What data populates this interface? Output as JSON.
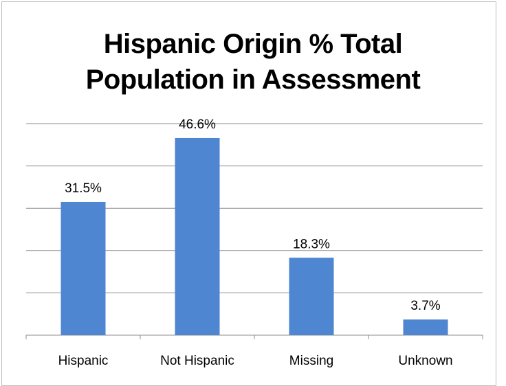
{
  "chart_data": {
    "type": "bar",
    "title_lines": [
      "Hispanic Origin % Total",
      "Population in Assessment"
    ],
    "categories": [
      "Hispanic",
      "Not Hispanic",
      "Missing",
      "Unknown"
    ],
    "values": [
      31.5,
      46.6,
      18.3,
      3.7
    ],
    "value_labels": [
      "31.5%",
      "46.6%",
      "18.3%",
      "3.7%"
    ],
    "ylim": [
      0,
      50
    ],
    "ytick_step": 10,
    "grid": true,
    "colors": {
      "bar": "#4f86d2",
      "grid": "#8c8c8c",
      "axis": "#8c8c8c"
    }
  }
}
